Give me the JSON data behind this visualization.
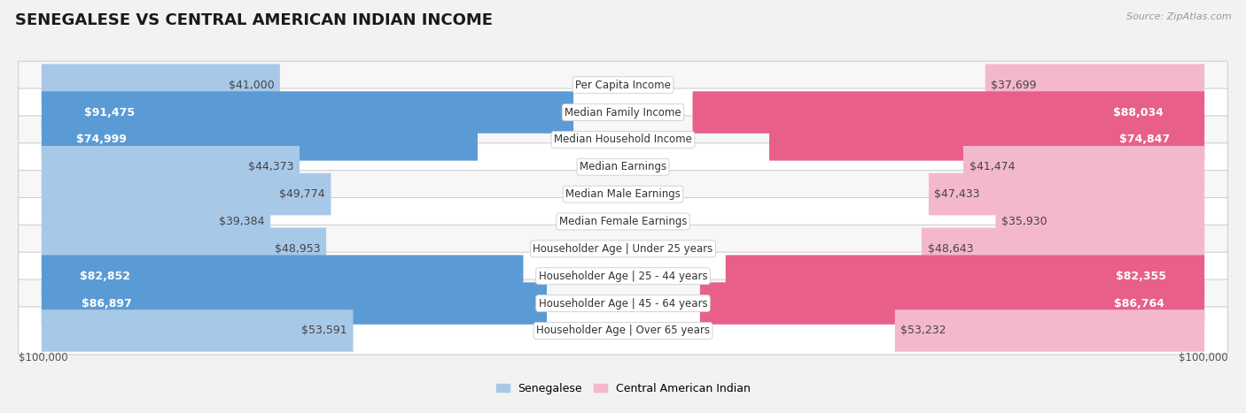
{
  "title": "SENEGALESE VS CENTRAL AMERICAN INDIAN INCOME",
  "source": "Source: ZipAtlas.com",
  "categories": [
    "Per Capita Income",
    "Median Family Income",
    "Median Household Income",
    "Median Earnings",
    "Median Male Earnings",
    "Median Female Earnings",
    "Householder Age | Under 25 years",
    "Householder Age | 25 - 44 years",
    "Householder Age | 45 - 64 years",
    "Householder Age | Over 65 years"
  ],
  "senegalese_values": [
    41000,
    91475,
    74999,
    44373,
    49774,
    39384,
    48953,
    82852,
    86897,
    53591
  ],
  "central_american_values": [
    37699,
    88034,
    74847,
    41474,
    47433,
    35930,
    48643,
    82355,
    86764,
    53232
  ],
  "senegalese_labels": [
    "$41,000",
    "$91,475",
    "$74,999",
    "$44,373",
    "$49,774",
    "$39,384",
    "$48,953",
    "$82,852",
    "$86,897",
    "$53,591"
  ],
  "central_american_labels": [
    "$37,699",
    "$88,034",
    "$74,847",
    "$41,474",
    "$47,433",
    "$35,930",
    "$48,643",
    "$82,355",
    "$86,764",
    "$53,232"
  ],
  "max_value": 100000,
  "blue_light": "#a8c8e8",
  "blue_dark": "#5b9bd5",
  "pink_light": "#f4b8cc",
  "pink_dark": "#e8608a",
  "legend_blue": "Senegalese",
  "legend_pink": "Central American Indian",
  "bg_color": "#f2f2f2",
  "row_bg_odd": "#f7f7f7",
  "row_bg_even": "#ffffff",
  "label_fontsize": 9,
  "title_fontsize": 13,
  "category_fontsize": 8.5,
  "inside_threshold": 65000
}
